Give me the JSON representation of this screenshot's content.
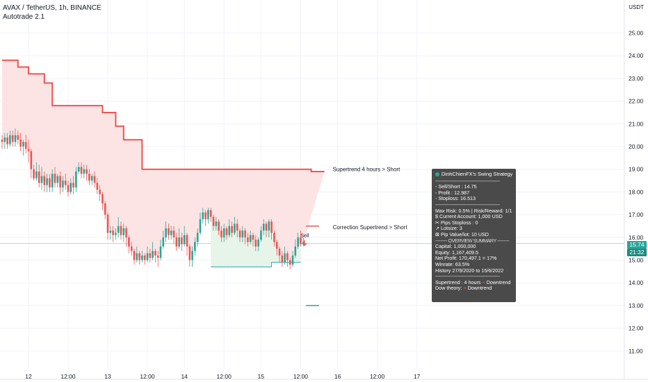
{
  "header": {
    "symbol": "AVAX / TetherUS, 1h, BINANCE",
    "indicator": "Autotrade 2.1",
    "currency": "USDT"
  },
  "price_tags": {
    "last_price": "15.74",
    "countdown": "21:32"
  },
  "colors": {
    "up": "#26a69a",
    "down": "#ef5350",
    "supertrend_4h": "#ef5350",
    "supertrend_fill": "#fde4e4",
    "correction_up_fill": "#e6f4ea",
    "correction_up_line": "#26a69a",
    "info_bg": "#4a4a4a",
    "axis_text": "#131722"
  },
  "annotations": {
    "supertrend_label": "Supertrend 4 hours > Short",
    "correction_label": "Correction Supertrend  > Short",
    "sell_label": "Sell"
  },
  "info_box": {
    "title": "DinhChienFX's Swing Strategy",
    "separator": "-------------------------------------------------",
    "trade_lines": [
      "- Sell/Short   : 14.75",
      "- Profit   : 12.987",
      "- Stoploss: 16.513"
    ],
    "risk_lines": [
      "Max Risk: 0.5% | Risk/Reward: 1/1",
      "$ Current Account: 1,000 USD",
      "✂ Pips Stoploss : 0",
      "↗ Lotsize: 3",
      "⊠ Pip Value/lot: 10 USD"
    ],
    "summary_header": "--------- OVERVIEW SUMMARY ---------",
    "summary_lines": [
      "Capital: 1,000,000",
      "Equity: 1,167,409.5",
      "Net Profit: 170,497.1 = 17%",
      "Winrate: 63.5%",
      "History 27/9/2020 to 15/6/2022"
    ],
    "trend_lines": [
      {
        "label": "Supertrend : 4 hours",
        "mark": "×",
        "value": "Downtrend"
      },
      {
        "label": "Dow theory:",
        "mark": "×",
        "value": "Downtrend"
      }
    ]
  },
  "chart_data": {
    "type": "candlestick",
    "y_axis": {
      "range": [
        10.55,
        25.7
      ],
      "ticks": [
        11.0,
        12.0,
        13.0,
        14.0,
        15.0,
        16.0,
        17.0,
        18.0,
        19.0,
        20.0,
        21.0,
        22.0,
        23.0,
        24.0,
        25.0
      ],
      "tick_labels": [
        "11.00",
        "12.00",
        "13.00",
        "14.00",
        "15.00",
        "16.00",
        "17.00",
        "18.00",
        "19.00",
        "20.00",
        "21.00",
        "22.00",
        "23.00",
        "24.00",
        "25.00"
      ]
    },
    "x_axis": {
      "bar_range": [
        0,
        156
      ],
      "ticks": [
        {
          "bar": 10,
          "label": "12"
        },
        {
          "bar": 25,
          "label": "12:00"
        },
        {
          "bar": 40,
          "label": "13"
        },
        {
          "bar": 55,
          "label": "12:00"
        },
        {
          "bar": 69,
          "label": "14"
        },
        {
          "bar": 84,
          "label": "12:00"
        },
        {
          "bar": 98,
          "label": "15"
        },
        {
          "bar": 113,
          "label": "12:00"
        },
        {
          "bar": 127,
          "label": "16"
        },
        {
          "bar": 142,
          "label": "12:00"
        },
        {
          "bar": 157,
          "label": "17"
        }
      ]
    },
    "last_price": 15.74,
    "candles": [
      [
        20.3,
        20.2,
        20.5,
        19.9
      ],
      [
        20.2,
        20.4,
        20.6,
        19.9
      ],
      [
        20.4,
        20.1,
        20.6,
        19.9
      ],
      [
        20.1,
        20.5,
        20.7,
        20.0
      ],
      [
        20.5,
        20.2,
        20.7,
        20.0
      ],
      [
        20.2,
        20.5,
        20.8,
        20.0
      ],
      [
        20.5,
        20.3,
        20.7,
        20.1
      ],
      [
        20.3,
        20.0,
        20.6,
        19.8
      ],
      [
        20.0,
        20.2,
        20.3,
        19.6
      ],
      [
        20.2,
        19.9,
        20.5,
        19.7
      ],
      [
        19.9,
        19.8,
        20.3,
        19.3
      ],
      [
        19.8,
        19.0,
        19.9,
        18.6
      ],
      [
        19.0,
        18.6,
        19.2,
        18.5
      ],
      [
        18.6,
        18.9,
        19.3,
        18.5
      ],
      [
        18.9,
        18.4,
        19.2,
        18.2
      ],
      [
        18.4,
        18.7,
        19.1,
        18.1
      ],
      [
        18.7,
        18.3,
        18.9,
        18.0
      ],
      [
        18.3,
        18.6,
        18.8,
        18.0
      ],
      [
        18.6,
        18.2,
        18.8,
        18.0
      ],
      [
        18.2,
        18.8,
        19.0,
        18.0
      ],
      [
        18.8,
        18.4,
        19.1,
        18.2
      ],
      [
        18.4,
        18.7,
        18.8,
        18.2
      ],
      [
        18.7,
        18.2,
        18.9,
        17.9
      ],
      [
        18.2,
        18.5,
        18.7,
        18.0
      ],
      [
        18.5,
        18.3,
        18.8,
        18.1
      ],
      [
        18.3,
        18.0,
        18.5,
        17.8
      ],
      [
        18.0,
        18.4,
        18.6,
        17.9
      ],
      [
        18.4,
        18.2,
        18.7,
        17.9
      ],
      [
        18.2,
        18.9,
        19.1,
        18.0
      ],
      [
        18.9,
        19.1,
        19.3,
        18.8
      ],
      [
        19.1,
        18.8,
        19.3,
        18.6
      ],
      [
        18.8,
        19.0,
        19.2,
        18.6
      ],
      [
        19.0,
        18.8,
        19.2,
        18.5
      ],
      [
        18.8,
        18.5,
        19.0,
        18.3
      ],
      [
        18.5,
        18.7,
        18.8,
        18.3
      ],
      [
        18.7,
        18.4,
        18.9,
        18.2
      ],
      [
        18.4,
        18.1,
        18.6,
        17.9
      ],
      [
        18.1,
        17.9,
        18.3,
        17.6
      ],
      [
        17.9,
        17.5,
        18.0,
        17.2
      ],
      [
        17.5,
        17.0,
        17.6,
        16.8
      ],
      [
        17.0,
        16.2,
        17.1,
        15.9
      ],
      [
        16.2,
        16.3,
        16.5,
        15.9
      ],
      [
        16.3,
        16.1,
        16.5,
        15.8
      ],
      [
        16.1,
        16.2,
        16.4,
        15.9
      ],
      [
        16.2,
        16.5,
        16.9,
        16.0
      ],
      [
        16.5,
        16.1,
        16.7,
        15.9
      ],
      [
        16.1,
        16.4,
        16.6,
        15.8
      ],
      [
        16.4,
        16.0,
        16.5,
        15.6
      ],
      [
        16.0,
        15.6,
        16.1,
        15.3
      ],
      [
        15.6,
        15.4,
        15.8,
        15.2
      ],
      [
        15.4,
        15.0,
        15.5,
        14.8
      ],
      [
        15.0,
        15.3,
        15.6,
        14.9
      ],
      [
        15.3,
        15.0,
        15.4,
        14.8
      ],
      [
        15.0,
        15.2,
        15.4,
        14.9
      ],
      [
        15.2,
        15.0,
        15.3,
        14.8
      ],
      [
        15.0,
        15.3,
        15.6,
        14.9
      ],
      [
        15.3,
        15.1,
        15.5,
        14.9
      ],
      [
        15.1,
        15.4,
        15.8,
        15.0
      ],
      [
        15.4,
        15.2,
        15.5,
        14.9
      ],
      [
        15.2,
        15.1,
        15.4,
        14.7
      ],
      [
        15.1,
        15.6,
        15.9,
        15.0
      ],
      [
        15.6,
        16.0,
        16.3,
        15.5
      ],
      [
        16.0,
        16.4,
        16.7,
        15.8
      ],
      [
        16.4,
        16.1,
        16.6,
        15.9
      ],
      [
        16.1,
        16.3,
        16.5,
        15.9
      ],
      [
        16.3,
        16.0,
        16.5,
        15.7
      ],
      [
        16.0,
        15.6,
        16.2,
        15.4
      ],
      [
        15.6,
        16.0,
        16.4,
        15.5
      ],
      [
        16.0,
        15.7,
        16.2,
        15.4
      ],
      [
        15.7,
        16.1,
        16.5,
        15.6
      ],
      [
        16.1,
        15.6,
        16.2,
        15.2
      ],
      [
        15.6,
        15.0,
        15.7,
        14.7
      ],
      [
        15.0,
        15.4,
        15.6,
        14.7
      ],
      [
        15.4,
        15.8,
        16.0,
        15.2
      ],
      [
        15.8,
        16.2,
        16.4,
        15.6
      ],
      [
        16.2,
        16.8,
        17.1,
        16.1
      ],
      [
        16.8,
        17.1,
        17.3,
        16.6
      ],
      [
        17.1,
        16.8,
        17.2,
        16.5
      ],
      [
        16.8,
        17.2,
        17.3,
        16.6
      ],
      [
        17.2,
        16.9,
        17.3,
        16.7
      ],
      [
        16.9,
        16.5,
        17.0,
        16.3
      ],
      [
        16.5,
        16.7,
        16.9,
        16.3
      ],
      [
        16.7,
        16.3,
        16.8,
        16.1
      ],
      [
        16.3,
        16.0,
        16.5,
        15.8
      ],
      [
        16.0,
        16.4,
        16.6,
        15.8
      ],
      [
        16.4,
        16.1,
        16.5,
        15.9
      ],
      [
        16.1,
        16.5,
        16.8,
        16.0
      ],
      [
        16.5,
        16.2,
        16.7,
        16.0
      ],
      [
        16.2,
        16.6,
        16.9,
        16.1
      ],
      [
        16.6,
        16.3,
        16.8,
        16.0
      ],
      [
        16.3,
        16.0,
        16.4,
        15.8
      ],
      [
        16.0,
        16.3,
        16.5,
        15.8
      ],
      [
        16.3,
        16.0,
        16.4,
        15.7
      ],
      [
        16.0,
        15.8,
        16.2,
        15.6
      ],
      [
        15.8,
        16.1,
        16.3,
        15.7
      ],
      [
        16.1,
        15.9,
        16.2,
        15.6
      ],
      [
        15.9,
        15.6,
        16.1,
        15.4
      ],
      [
        15.6,
        15.9,
        16.0,
        15.4
      ],
      [
        15.9,
        16.3,
        16.5,
        15.8
      ],
      [
        16.3,
        16.6,
        16.8,
        16.1
      ],
      [
        16.6,
        16.3,
        16.7,
        16.0
      ],
      [
        16.3,
        16.7,
        16.8,
        16.0
      ],
      [
        16.7,
        16.2,
        16.8,
        15.9
      ],
      [
        16.2,
        15.8,
        16.3,
        15.6
      ],
      [
        15.8,
        15.5,
        15.9,
        15.2
      ],
      [
        15.5,
        15.2,
        15.6,
        14.9
      ],
      [
        15.2,
        14.9,
        15.4,
        14.7
      ],
      [
        14.9,
        15.3,
        15.6,
        14.8
      ],
      [
        15.3,
        15.0,
        15.4,
        14.7
      ],
      [
        15.0,
        14.8,
        15.1,
        14.6
      ],
      [
        14.8,
        15.2,
        15.4,
        14.7
      ],
      [
        15.2,
        15.6,
        15.9,
        15.1
      ],
      [
        15.6,
        16.0,
        16.2,
        15.5
      ],
      [
        16.0,
        15.7,
        16.3,
        15.6
      ],
      [
        15.7,
        15.8,
        16.0,
        15.6
      ]
    ],
    "supertrend_4h": {
      "name": "Supertrend 4 hours > Short",
      "steps": [
        [
          0,
          23.8
        ],
        [
          6,
          23.8
        ],
        [
          6,
          23.5
        ],
        [
          10,
          23.5
        ],
        [
          10,
          23.2
        ],
        [
          16,
          23.2
        ],
        [
          16,
          22.8
        ],
        [
          19,
          22.8
        ],
        [
          19,
          21.8
        ],
        [
          38,
          21.8
        ],
        [
          38,
          21.5
        ],
        [
          43,
          21.5
        ],
        [
          43,
          20.9
        ],
        [
          46,
          20.9
        ],
        [
          46,
          20.3
        ],
        [
          53,
          20.3
        ],
        [
          53,
          19.0
        ],
        [
          117,
          19.0
        ],
        [
          117,
          18.9
        ],
        [
          122,
          18.9
        ]
      ]
    },
    "correction_supertrend": {
      "name": "Correction Supertrend  > Short",
      "segment": [
        [
          115,
          16.5
        ],
        [
          120,
          16.5
        ]
      ]
    },
    "correction_up": {
      "steps": [
        [
          79,
          14.7
        ],
        [
          102,
          14.7
        ],
        [
          102,
          14.9
        ],
        [
          113,
          14.9
        ]
      ]
    },
    "target_line": [
      [
        115,
        13.0
      ],
      [
        120,
        13.0
      ]
    ],
    "sell_signal": {
      "bar": 115,
      "price": 15.8
    }
  }
}
